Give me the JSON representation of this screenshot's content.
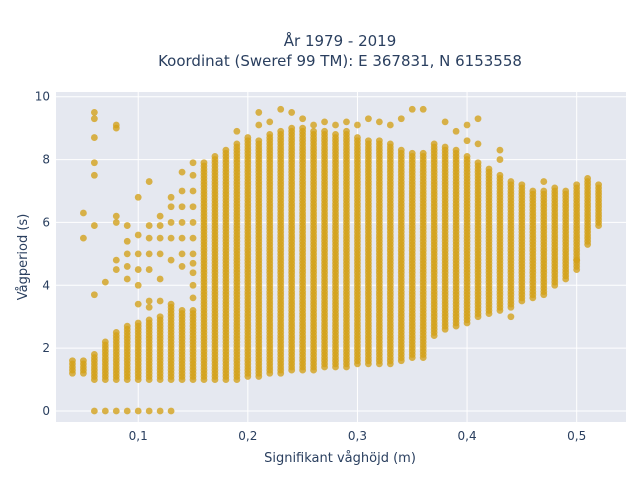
{
  "chart_data": {
    "type": "scatter",
    "title_lines": [
      "År 1979 - 2019",
      "Koordinat (Sweref 99 TM): E 367831, N 6153558"
    ],
    "xlabel": "Signifikant våghöjd (m)",
    "ylabel": "Vågperiod (s)",
    "xlim": [
      0.025,
      0.545
    ],
    "ylim": [
      -0.35,
      10.15
    ],
    "xticks": [
      0.1,
      0.2,
      0.3,
      0.4,
      0.5
    ],
    "xtick_labels": [
      "0,1",
      "0,2",
      "0,3",
      "0,4",
      "0,5"
    ],
    "yticks": [
      0,
      2,
      4,
      6,
      8,
      10
    ],
    "ytick_labels": [
      "0",
      "2",
      "4",
      "6",
      "8",
      "10"
    ],
    "grid": true,
    "marker_color": "#d4a017",
    "plot_background": "#e5e8f0",
    "columns": [
      {
        "x": 0.04,
        "ymin": 1.2,
        "ymax": 1.6
      },
      {
        "x": 0.05,
        "ymin": 1.2,
        "ymax": 1.6,
        "extra": [
          5.5,
          6.3
        ]
      },
      {
        "x": 0.06,
        "ymin": 1.0,
        "ymax": 1.8,
        "extra": [
          0.0,
          3.7,
          5.9,
          7.5,
          7.9,
          8.7,
          9.3,
          9.5
        ]
      },
      {
        "x": 0.07,
        "ymin": 1.0,
        "ymax": 2.2,
        "extra": [
          0.0,
          4.1
        ]
      },
      {
        "x": 0.08,
        "ymin": 1.0,
        "ymax": 2.5,
        "extra": [
          0.0,
          4.5,
          4.8,
          6.0,
          6.2,
          9.0,
          9.1
        ]
      },
      {
        "x": 0.09,
        "ymin": 1.0,
        "ymax": 2.7,
        "extra": [
          0.0,
          4.2,
          4.6,
          5.0,
          5.4,
          5.9
        ]
      },
      {
        "x": 0.1,
        "ymin": 1.0,
        "ymax": 2.8,
        "extra": [
          0.0,
          3.4,
          4.0,
          4.5,
          5.0,
          5.6,
          6.8
        ]
      },
      {
        "x": 0.11,
        "ymin": 1.0,
        "ymax": 2.9,
        "extra": [
          0.0,
          3.3,
          3.5,
          4.5,
          5.0,
          5.5,
          5.9,
          7.3
        ]
      },
      {
        "x": 0.12,
        "ymin": 1.0,
        "ymax": 3.0,
        "extra": [
          0.0,
          3.5,
          4.2,
          5.0,
          5.5,
          5.9,
          6.2
        ]
      },
      {
        "x": 0.13,
        "ymin": 1.0,
        "ymax": 3.4,
        "extra": [
          0.0,
          4.8,
          5.5,
          6.0,
          6.5,
          6.8
        ]
      },
      {
        "x": 0.14,
        "ymin": 1.0,
        "ymax": 3.2,
        "extra": [
          4.6,
          5.0,
          5.5,
          6.0,
          6.5,
          7.0,
          7.6
        ]
      },
      {
        "x": 0.15,
        "ymin": 1.0,
        "ymax": 3.2,
        "extra": [
          3.6,
          4.0,
          4.4,
          4.7,
          5.0,
          5.5,
          6.0,
          6.5,
          7.0,
          7.5,
          7.9
        ]
      },
      {
        "x": 0.16,
        "ymin": 1.0,
        "ymax": 7.9
      },
      {
        "x": 0.17,
        "ymin": 1.0,
        "ymax": 8.1
      },
      {
        "x": 0.18,
        "ymin": 1.0,
        "ymax": 8.3
      },
      {
        "x": 0.19,
        "ymin": 1.0,
        "ymax": 8.5,
        "extra": [
          8.9
        ]
      },
      {
        "x": 0.2,
        "ymin": 1.1,
        "ymax": 8.7
      },
      {
        "x": 0.21,
        "ymin": 1.1,
        "ymax": 8.6,
        "extra": [
          9.1,
          9.5
        ]
      },
      {
        "x": 0.22,
        "ymin": 1.2,
        "ymax": 8.8,
        "extra": [
          9.2
        ]
      },
      {
        "x": 0.23,
        "ymin": 1.2,
        "ymax": 8.9,
        "extra": [
          9.6
        ]
      },
      {
        "x": 0.24,
        "ymin": 1.3,
        "ymax": 9.0,
        "extra": [
          9.5
        ]
      },
      {
        "x": 0.25,
        "ymin": 1.3,
        "ymax": 9.0,
        "extra": [
          9.3
        ]
      },
      {
        "x": 0.26,
        "ymin": 1.3,
        "ymax": 8.9,
        "extra": [
          9.1
        ]
      },
      {
        "x": 0.27,
        "ymin": 1.4,
        "ymax": 8.9,
        "extra": [
          9.2
        ]
      },
      {
        "x": 0.28,
        "ymin": 1.4,
        "ymax": 8.8,
        "extra": [
          9.1
        ]
      },
      {
        "x": 0.29,
        "ymin": 1.4,
        "ymax": 8.9,
        "extra": [
          9.2
        ]
      },
      {
        "x": 0.3,
        "ymin": 1.5,
        "ymax": 8.7,
        "extra": [
          9.1
        ]
      },
      {
        "x": 0.31,
        "ymin": 1.5,
        "ymax": 8.6,
        "extra": [
          9.3
        ]
      },
      {
        "x": 0.32,
        "ymin": 1.5,
        "ymax": 8.6,
        "extra": [
          9.2
        ]
      },
      {
        "x": 0.33,
        "ymin": 1.5,
        "ymax": 8.5,
        "extra": [
          9.1
        ]
      },
      {
        "x": 0.34,
        "ymin": 1.6,
        "ymax": 8.3,
        "extra": [
          9.3
        ]
      },
      {
        "x": 0.35,
        "ymin": 1.7,
        "ymax": 8.2,
        "extra": [
          9.6
        ]
      },
      {
        "x": 0.36,
        "ymin": 1.7,
        "ymax": 8.2,
        "extra": [
          9.6
        ]
      },
      {
        "x": 0.37,
        "ymin": 2.4,
        "ymax": 8.5
      },
      {
        "x": 0.38,
        "ymin": 2.6,
        "ymax": 8.4,
        "extra": [
          9.2
        ]
      },
      {
        "x": 0.39,
        "ymin": 2.7,
        "ymax": 8.3,
        "extra": [
          8.9
        ]
      },
      {
        "x": 0.4,
        "ymin": 2.8,
        "ymax": 8.1,
        "extra": [
          8.6,
          9.1
        ]
      },
      {
        "x": 0.41,
        "ymin": 3.0,
        "ymax": 7.9,
        "extra": [
          8.5,
          9.3
        ]
      },
      {
        "x": 0.42,
        "ymin": 3.1,
        "ymax": 7.7
      },
      {
        "x": 0.43,
        "ymin": 3.2,
        "ymax": 7.5,
        "extra": [
          8.0,
          8.3
        ]
      },
      {
        "x": 0.44,
        "ymin": 3.3,
        "ymax": 7.3,
        "extra": [
          3.0
        ]
      },
      {
        "x": 0.45,
        "ymin": 3.5,
        "ymax": 7.2
      },
      {
        "x": 0.46,
        "ymin": 3.6,
        "ymax": 7.0
      },
      {
        "x": 0.47,
        "ymin": 3.7,
        "ymax": 7.0,
        "extra": [
          7.3
        ]
      },
      {
        "x": 0.48,
        "ymin": 4.0,
        "ymax": 7.1
      },
      {
        "x": 0.49,
        "ymin": 4.2,
        "ymax": 7.0
      },
      {
        "x": 0.5,
        "ymin": 4.5,
        "ymax": 7.2,
        "extra": [
          4.8
        ]
      },
      {
        "x": 0.51,
        "ymin": 5.3,
        "ymax": 7.4
      },
      {
        "x": 0.52,
        "ymin": 5.9,
        "ymax": 7.2
      }
    ]
  }
}
